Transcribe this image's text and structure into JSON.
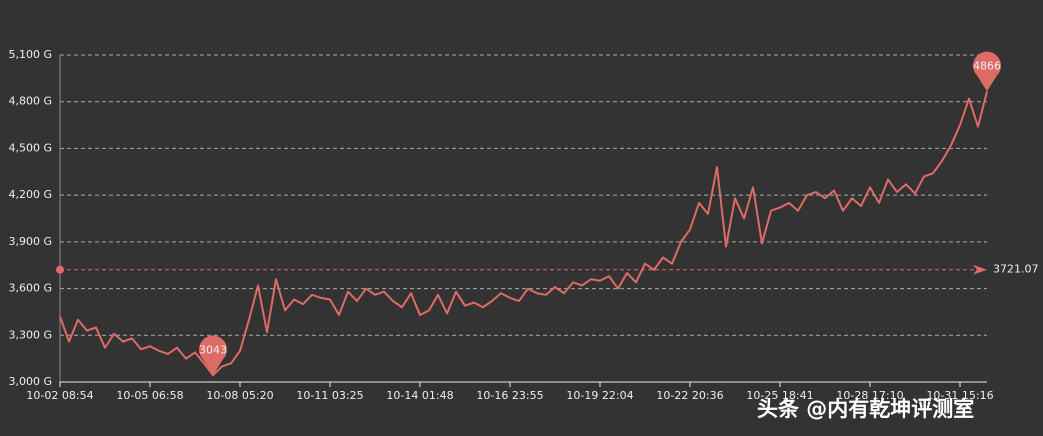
{
  "chart_data": {
    "type": "line",
    "categories": [
      "10-02 08:54",
      null,
      null,
      null,
      null,
      null,
      null,
      null,
      null,
      null,
      "10-05 06:58",
      null,
      null,
      null,
      null,
      null,
      null,
      null,
      null,
      null,
      "10-08 05:20",
      null,
      null,
      null,
      null,
      null,
      null,
      null,
      null,
      null,
      "10-11 03:25",
      null,
      null,
      null,
      null,
      null,
      null,
      null,
      null,
      null,
      "10-14 01:48",
      null,
      null,
      null,
      null,
      null,
      null,
      null,
      null,
      null,
      "10-16 23:55",
      null,
      null,
      null,
      null,
      null,
      null,
      null,
      null,
      null,
      "10-19 22:04",
      null,
      null,
      null,
      null,
      null,
      null,
      null,
      null,
      null,
      "10-22 20:36",
      null,
      null,
      null,
      null,
      null,
      null,
      null,
      null,
      null,
      "10-25 18:41",
      null,
      null,
      null,
      null,
      null,
      null,
      null,
      null,
      null,
      "10-28 17:10",
      null,
      null,
      null,
      null,
      null,
      null,
      null,
      null,
      null,
      "10-31 15:16",
      null,
      null,
      null
    ],
    "series": [
      {
        "color": "#dd6b66",
        "values": [
          3420,
          3260,
          3400,
          3330,
          3350,
          3220,
          3310,
          3260,
          3280,
          3210,
          3230,
          3200,
          3180,
          3220,
          3150,
          3190,
          3120,
          3043,
          3100,
          3120,
          3200,
          3400,
          3620,
          3320,
          3660,
          3460,
          3530,
          3500,
          3560,
          3540,
          3530,
          3430,
          3580,
          3520,
          3600,
          3560,
          3580,
          3520,
          3480,
          3570,
          3430,
          3460,
          3560,
          3440,
          3580,
          3490,
          3510,
          3480,
          3520,
          3570,
          3540,
          3520,
          3600,
          3570,
          3560,
          3610,
          3570,
          3640,
          3620,
          3660,
          3650,
          3680,
          3600,
          3700,
          3640,
          3760,
          3720,
          3800,
          3760,
          3900,
          3980,
          4150,
          4080,
          4380,
          3870,
          4180,
          4050,
          4250,
          3890,
          4100,
          4120,
          4150,
          4100,
          4200,
          4220,
          4180,
          4230,
          4100,
          4180,
          4130,
          4250,
          4150,
          4300,
          4220,
          4270,
          4210,
          4320,
          4340,
          4420,
          4520,
          4650,
          4820,
          4640,
          4866
        ]
      }
    ],
    "min": 3043,
    "max": 4866,
    "average": 3721.07,
    "ylim": [
      3000,
      5100
    ],
    "yticks": [
      {
        "value": 3000,
        "label": "3,000 G"
      },
      {
        "value": 3300,
        "label": "3,300 G"
      },
      {
        "value": 3600,
        "label": "3,600 G"
      },
      {
        "value": 3900,
        "label": "3,900 G"
      },
      {
        "value": 4200,
        "label": "4,200 G"
      },
      {
        "value": 4500,
        "label": "4,500 G"
      },
      {
        "value": 4800,
        "label": "4,800 G"
      },
      {
        "value": 5100,
        "label": "5,100 G"
      }
    ],
    "grid": true
  },
  "watermark": "头条 @内有乾坤评测室"
}
